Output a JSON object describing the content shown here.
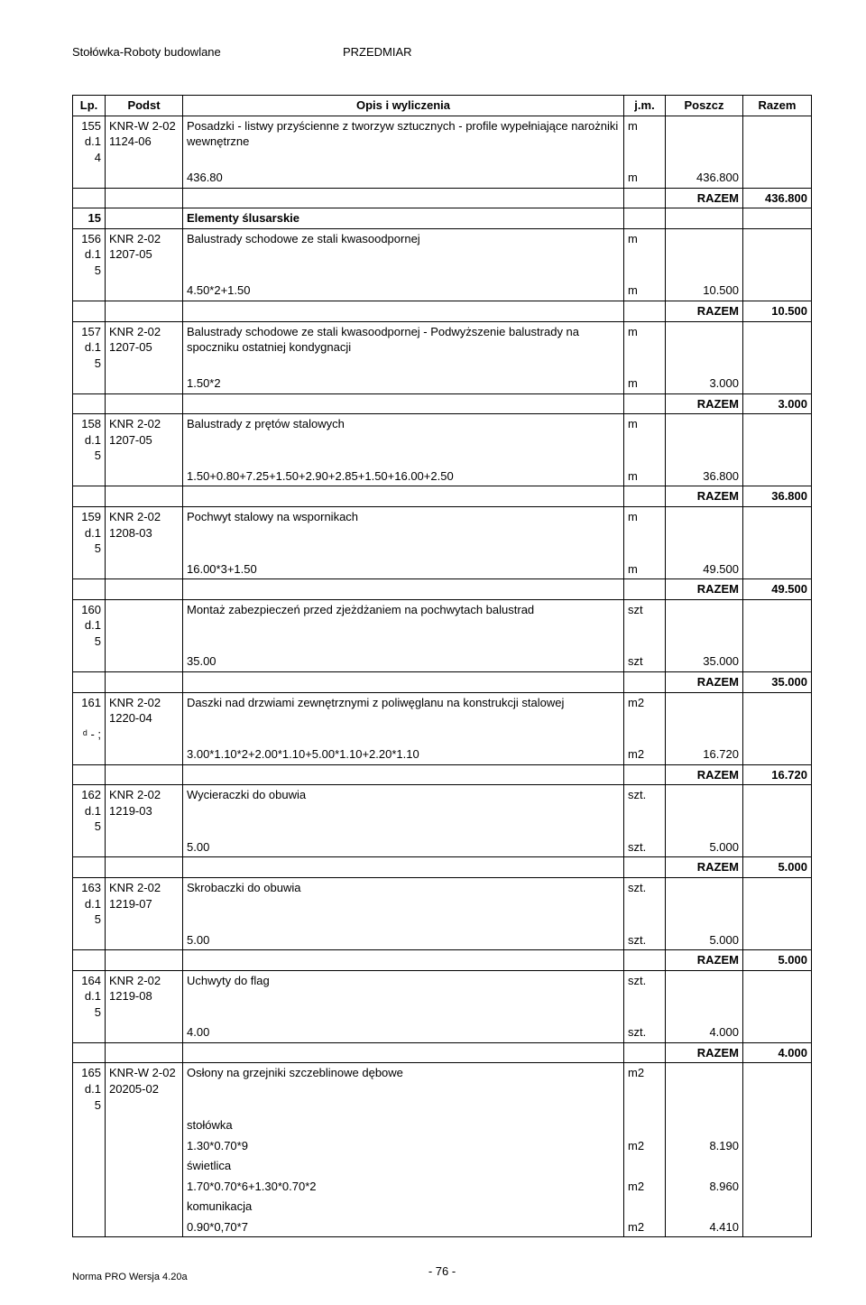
{
  "header": {
    "left": "Stołówka-Roboty budowlane",
    "center": "PRZEDMIAR"
  },
  "columns": {
    "lp": "Lp.",
    "podst": "Podst",
    "opis": "Opis i wyliczenia",
    "jm": "j.m.",
    "poszcz": "Poszcz",
    "razem": "Razem"
  },
  "footer": {
    "pagenum": "- 76 -",
    "software": "Norma PRO Wersja 4.20a"
  },
  "razem_label": "RAZEM",
  "items": [
    {
      "lp1": "155",
      "lp2": "d.1",
      "lp3": "4",
      "podst": "KNR-W 2-02 1124-06",
      "opis": "Posadzki - listwy przyścienne z tworzyw sztucznych - profile wypełniające narożniki wewnętrzne",
      "jm": "m",
      "calc": "436.80",
      "calc_jm": "m",
      "poszcz": "436.800",
      "razem": "436.800"
    }
  ],
  "section": {
    "num": "15",
    "title": "Elementy ślusarskie"
  },
  "items2": [
    {
      "lp1": "156",
      "lp2": "d.1",
      "lp3": "5",
      "podst": "KNR 2-02 1207-05",
      "opis": "Balustrady schodowe ze stali kwasoodpornej",
      "jm": "m",
      "calc": "4.50*2+1.50",
      "calc_jm": "m",
      "poszcz": "10.500",
      "razem": "10.500"
    },
    {
      "lp1": "157",
      "lp2": "d.1",
      "lp3": "5",
      "podst": "KNR 2-02 1207-05",
      "opis": "Balustrady schodowe ze stali kwasoodpornej - Podwyższenie balustrady na spoczniku ostatniej kondygnacji",
      "jm": "m",
      "calc": "1.50*2",
      "calc_jm": "m",
      "poszcz": "3.000",
      "razem": "3.000"
    },
    {
      "lp1": "158",
      "lp2": "d.1",
      "lp3": "5",
      "podst": "KNR 2-02 1207-05",
      "opis": "Balustrady z prętów stalowych",
      "jm": "m",
      "calc": "1.50+0.80+7.25+1.50+2.90+2.85+1.50+16.00+2.50",
      "calc_jm": "m",
      "poszcz": "36.800",
      "razem": "36.800"
    },
    {
      "lp1": "159",
      "lp2": "d.1",
      "lp3": "5",
      "podst": "KNR 2-02 1208-03",
      "opis": "Pochwyt stalowy na wspornikach",
      "jm": "m",
      "calc": "16.00*3+1.50",
      "calc_jm": "m",
      "poszcz": "49.500",
      "razem": "49.500"
    },
    {
      "lp1": "160",
      "lp2": "d.1",
      "lp3": "5",
      "podst": "",
      "opis": "Montaż zabezpieczeń przed zjeżdżaniem na pochwytach balustrad",
      "jm": "szt",
      "calc": "35.00",
      "calc_jm": "szt",
      "poszcz": "35.000",
      "razem": "35.000"
    },
    {
      "lp1": "161",
      "lp2": "",
      "lp3": "ᵈ - ;",
      "podst": "KNR 2-02 1220-04",
      "opis": "Daszki nad drzwiami zewnętrznymi z poliwęglanu na konstrukcji stalowej",
      "jm": "m2",
      "calc": "3.00*1.10*2+2.00*1.10+5.00*1.10+2.20*1.10",
      "calc_jm": "m2",
      "poszcz": "16.720",
      "razem": "16.720"
    },
    {
      "lp1": "162",
      "lp2": "d.1",
      "lp3": "5",
      "podst": "KNR 2-02 1219-03",
      "opis": "Wycieraczki do obuwia",
      "jm": "szt.",
      "calc": "5.00",
      "calc_jm": "szt.",
      "poszcz": "5.000",
      "razem": "5.000"
    },
    {
      "lp1": "163",
      "lp2": "d.1",
      "lp3": "5",
      "podst": "KNR 2-02 1219-07",
      "opis": "Skrobaczki do obuwia",
      "jm": "szt.",
      "calc": "5.00",
      "calc_jm": "szt.",
      "poszcz": "5.000",
      "razem": "5.000"
    },
    {
      "lp1": "164",
      "lp2": "d.1",
      "lp3": "5",
      "podst": "KNR 2-02 1219-08",
      "opis": "Uchwyty do flag",
      "jm": "szt.",
      "calc": "4.00",
      "calc_jm": "szt.",
      "poszcz": "4.000",
      "razem": "4.000"
    }
  ],
  "item165": {
    "lp1": "165",
    "lp2": "d.1",
    "lp3": "5",
    "podst": "KNR-W 2-02 20205-02",
    "opis": "Osłony na grzejniki szczeblinowe dębowe",
    "jm": "m2",
    "lines": [
      {
        "txt": "stołówka",
        "jm": "",
        "val": ""
      },
      {
        "txt": "1.30*0.70*9",
        "jm": "m2",
        "val": "8.190"
      },
      {
        "txt": "świetlica",
        "jm": "",
        "val": ""
      },
      {
        "txt": "1.70*0.70*6+1.30*0.70*2",
        "jm": "m2",
        "val": "8.960"
      },
      {
        "txt": "komunikacja",
        "jm": "",
        "val": ""
      },
      {
        "txt": "0.90*0,70*7",
        "jm": "m2",
        "val": "4.410"
      }
    ]
  }
}
